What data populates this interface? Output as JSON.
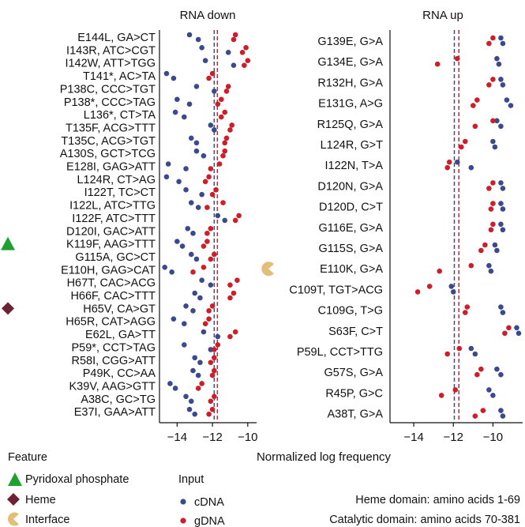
{
  "chart_data": [
    {
      "type": "scatter",
      "title": "RNA down",
      "xlim": [
        -15,
        -9.5
      ],
      "xticks": [
        -14,
        -12,
        -10
      ],
      "vlines": [
        {
          "x": -11.9,
          "color": "#3b4a8c"
        },
        {
          "x": -11.72,
          "color": "#cc1f2a"
        }
      ],
      "rows": [
        {
          "label": "E144L, GA>CT",
          "cdna": [
            -13.3,
            -12.8
          ],
          "gdna": [
            -10.8,
            -10.7
          ]
        },
        {
          "label": "I143R, ATC>CGT",
          "cdna": [
            -12.6,
            -11.1
          ],
          "gdna": [
            -10.3,
            -10.1
          ]
        },
        {
          "label": "I142W, ATT>TGG",
          "cdna": [
            -12.4,
            -10.8
          ],
          "gdna": [
            -10.2,
            -10.0
          ]
        },
        {
          "label": "T141*, AC>TA",
          "cdna": [
            -14.6,
            -14.2
          ],
          "gdna": [
            -12.2,
            -12.0
          ]
        },
        {
          "label": "P138C, CCC>TGT",
          "cdna": [
            -12.9,
            -11.9
          ],
          "gdna": [
            -11.2,
            -11.1
          ]
        },
        {
          "label": "P138*, CCC>TAG",
          "cdna": [
            -14.0,
            -13.3
          ],
          "gdna": [
            -11.7,
            -11.5
          ]
        },
        {
          "label": "L136*, CT>TA",
          "cdna": [
            -14.1,
            -13.6
          ],
          "gdna": [
            -11.5,
            -11.3
          ]
        },
        {
          "label": "T135F, ACG>TTT",
          "cdna": [
            -12.1,
            -11.9
          ],
          "gdna": [
            -11.0,
            -10.9
          ]
        },
        {
          "label": "T135C, ACG>TGT",
          "cdna": [
            -13.2,
            -12.9
          ],
          "gdna": [
            -11.3,
            -11.2
          ]
        },
        {
          "label": "A130S, GCT>TCG",
          "cdna": [
            -12.9,
            -12.5
          ],
          "gdna": [
            -11.4,
            -11.3
          ]
        },
        {
          "label": "E128I, GAG>ATT",
          "cdna": [
            -14.5,
            -13.5
          ],
          "gdna": [
            -12.1,
            -11.6
          ]
        },
        {
          "label": "L124R, CT>AG",
          "cdna": [
            -14.6,
            -13.9
          ],
          "gdna": [
            -12.4,
            -12.2
          ]
        },
        {
          "label": "I122T, TC>CT",
          "cdna": [
            -13.5,
            -12.6
          ],
          "gdna": [
            -12.0,
            -11.8
          ]
        },
        {
          "label": "I122L, ATC>TTG",
          "cdna": [
            -13.2,
            -12.8
          ],
          "gdna": [
            -12.3,
            -11.4
          ]
        },
        {
          "label": "I122F, ATC>TTT",
          "cdna": [
            -11.7,
            -11.3
          ],
          "gdna": [
            -10.7,
            -10.5
          ]
        },
        {
          "label": "D120I, GAC>ATT",
          "cdna": [
            -13.4,
            -13.1
          ],
          "gdna": [
            -12.3,
            -12.1
          ]
        },
        {
          "label": "K119F, AAG>TTT",
          "cdna": [
            -14.0,
            -13.7
          ],
          "gdna": [
            -12.5,
            -12.3
          ]
        },
        {
          "label": "G115A, GC>CT",
          "cdna": [
            -13.2,
            -12.9
          ],
          "gdna": [
            -12.1,
            -11.9
          ]
        },
        {
          "label": "E110H, GAG>CAT",
          "cdna": [
            -14.7,
            -14.3
          ],
          "gdna": [
            -13.1,
            -12.5
          ]
        },
        {
          "label": "H67T, CAC>ACG",
          "cdna": [
            -12.6,
            -12.1
          ],
          "gdna": [
            -11.0,
            -10.6
          ]
        },
        {
          "label": "H66F, CAC>TTT",
          "cdna": [
            -13.0,
            -12.7
          ],
          "gdna": [
            -11.0,
            -10.8
          ]
        },
        {
          "label": "H65V, CA>GT",
          "cdna": [
            -13.5,
            -13.1
          ],
          "gdna": [
            -12.2,
            -12.0
          ]
        },
        {
          "label": "H65R, CAT>AGG",
          "cdna": [
            -14.2,
            -13.6
          ],
          "gdna": [
            -12.4,
            -12.2
          ]
        },
        {
          "label": "E62L, GA>TT",
          "cdna": [
            -12.5,
            -11.7
          ],
          "gdna": [
            -11.0,
            -10.7
          ]
        },
        {
          "label": "P59*, CCT>TAG",
          "cdna": [
            -13.6,
            -12.1
          ],
          "gdna": [
            -11.9,
            -11.7
          ]
        },
        {
          "label": "R58I, CGG>ATT",
          "cdna": [
            -13.0,
            -12.7
          ],
          "gdna": [
            -12.1,
            -11.9
          ]
        },
        {
          "label": "P49K, CC>AA",
          "cdna": [
            -13.1,
            -12.8
          ],
          "gdna": [
            -12.0,
            -11.9
          ]
        },
        {
          "label": "K39V, AAG>GTT",
          "cdna": [
            -14.4,
            -14.1
          ],
          "gdna": [
            -12.8,
            -12.6
          ]
        },
        {
          "label": "A38C, GC>TG",
          "cdna": [
            -13.5,
            -13.2
          ],
          "gdna": [
            -12.1,
            -11.9
          ]
        },
        {
          "label": "E37I, GAA>ATT",
          "cdna": [
            -13.3,
            -13.0
          ],
          "gdna": [
            -12.2,
            -12.0
          ]
        }
      ]
    },
    {
      "type": "scatter",
      "title": "RNA up",
      "xlim": [
        -15.2,
        -8.5
      ],
      "xticks": [
        -14,
        -12,
        -10
      ],
      "vlines": [
        {
          "x": -11.95,
          "color": "#3b4a8c"
        },
        {
          "x": -11.72,
          "color": "#cc1f2a"
        }
      ],
      "rows": [
        {
          "label": "G139E, G>A",
          "cdna": [
            -9.6,
            -9.5
          ],
          "gdna": [
            -10.2,
            -10.0
          ]
        },
        {
          "label": "G134E, G>A",
          "cdna": [
            -9.8,
            -9.7
          ],
          "gdna": [
            -12.8,
            -11.8
          ]
        },
        {
          "label": "R132H, G>A",
          "cdna": [
            -9.6,
            -9.5
          ],
          "gdna": [
            -10.2,
            -10.0
          ]
        },
        {
          "label": "E131G, A>G",
          "cdna": [
            -9.3,
            -9.1
          ],
          "gdna": [
            -11.0,
            -10.8
          ]
        },
        {
          "label": "R125Q, G>A",
          "cdna": [
            -9.8,
            -9.6
          ],
          "gdna": [
            -10.9,
            -10.0
          ]
        },
        {
          "label": "L124R, G>T",
          "cdna": [
            -10.0,
            -9.9
          ],
          "gdna": [
            -11.6,
            -11.4
          ]
        },
        {
          "label": "I122N, T>A",
          "cdna": [
            -11.8,
            -11.1
          ],
          "gdna": [
            -12.3,
            -12.2
          ]
        },
        {
          "label": "D120N, G>A",
          "cdna": [
            -9.6,
            -9.5
          ],
          "gdna": [
            -10.2,
            -10.0
          ]
        },
        {
          "label": "D120D, C>T",
          "cdna": [
            -9.6,
            -9.5
          ],
          "gdna": [
            -10.1,
            -10.0
          ]
        },
        {
          "label": "G116E, G>A",
          "cdna": [
            -9.6,
            -9.5
          ],
          "gdna": [
            -10.1,
            -10.0
          ]
        },
        {
          "label": "G115S, G>A",
          "cdna": [
            -9.9,
            -9.8
          ],
          "gdna": [
            -10.6,
            -10.4
          ]
        },
        {
          "label": "E110K, G>A",
          "cdna": [
            -10.2,
            -10.1
          ],
          "gdna": [
            -12.7,
            -11.1
          ]
        },
        {
          "label": "C109T, TGT>ACG",
          "cdna": [
            -12.1,
            -12.0
          ],
          "gdna": [
            -13.8,
            -13.2
          ]
        },
        {
          "label": "C109G, T>G",
          "cdna": [
            -9.6,
            -9.5
          ],
          "gdna": [
            -11.4,
            -11.3
          ]
        },
        {
          "label": "S63F, C>T",
          "cdna": [
            -8.8,
            -8.7
          ],
          "gdna": [
            -9.4,
            -9.2
          ]
        },
        {
          "label": "P59L, CCT>TTG",
          "cdna": [
            -11.1,
            -10.9
          ],
          "gdna": [
            -12.3,
            -11.7
          ]
        },
        {
          "label": "G57S, G>A",
          "cdna": [
            -9.8,
            -9.6
          ],
          "gdna": [
            -10.8,
            -10.6
          ]
        },
        {
          "label": "R45P, G>C",
          "cdna": [
            -10.2,
            -10.0
          ],
          "gdna": [
            -12.6,
            -11.9
          ]
        },
        {
          "label": "A38T, G>A",
          "cdna": [
            -9.6,
            -9.5
          ],
          "gdna": [
            -10.9,
            -10.5
          ]
        }
      ]
    }
  ],
  "xlabel": "Normalized log frequency",
  "feature_markers": [
    {
      "row": "K119F, AAG>TTT",
      "feature": "Pyridoxal phosphate"
    },
    {
      "row": "H65V, CA>GT",
      "feature": "Heme"
    },
    {
      "row": "E110K, G>A",
      "feature": "Interface"
    }
  ],
  "legend": {
    "feature_title": "Feature",
    "features": [
      {
        "name": "Pyridoxal phosphate",
        "shape": "triangle",
        "color": "#1fa132"
      },
      {
        "name": "Heme",
        "shape": "diamond",
        "color": "#6b2236"
      },
      {
        "name": "Interface",
        "shape": "pacman",
        "color": "#e2bf78"
      }
    ],
    "input_title": "Input",
    "inputs": [
      {
        "name": "cDNA",
        "color": "#3b4a8c"
      },
      {
        "name": "gDNA",
        "color": "#cc1f2a"
      }
    ]
  },
  "domain_notes": [
    "Heme domain: amino acids 1-69",
    "Catalytic domain: amino acids 70-381"
  ],
  "colors": {
    "cdna": "#3b4a8c",
    "gdna": "#cc1f2a",
    "axis": "#111111"
  }
}
